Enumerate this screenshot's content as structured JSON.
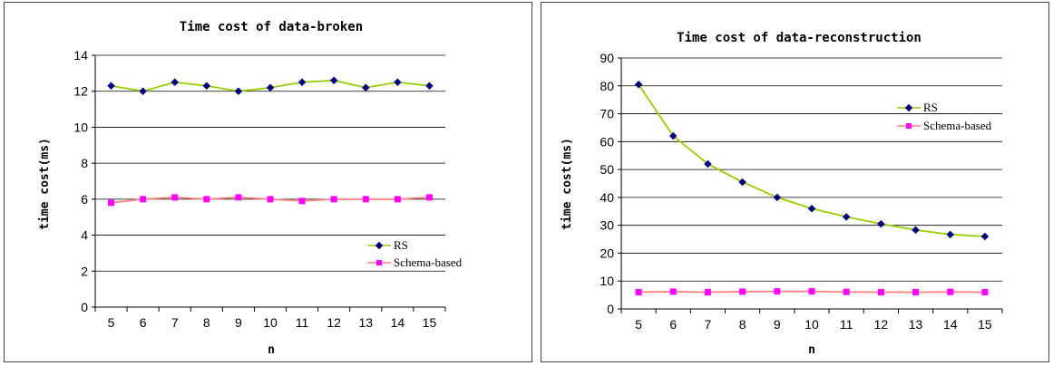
{
  "chart_data": [
    {
      "type": "line",
      "title": "Time cost of data-broken",
      "xlabel": "n",
      "ylabel": "time cost(ms)",
      "x": [
        5,
        6,
        7,
        8,
        9,
        10,
        11,
        12,
        13,
        14,
        15
      ],
      "ylim": [
        0,
        14
      ],
      "yticks": [
        0,
        2,
        4,
        6,
        8,
        10,
        12,
        14
      ],
      "grid": true,
      "legend_position": "right",
      "series": [
        {
          "name": "RS",
          "color": "#99cc00",
          "marker_color": "#000080",
          "marker": "diamond",
          "values": [
            12.3,
            12.0,
            12.5,
            12.3,
            12.0,
            12.2,
            12.5,
            12.6,
            12.2,
            12.5,
            12.3
          ]
        },
        {
          "name": "Schema-based",
          "color": "#ff8080",
          "marker_color": "#ff00ff",
          "marker": "square",
          "values": [
            5.8,
            6.0,
            6.1,
            6.0,
            6.1,
            6.0,
            5.9,
            6.0,
            6.0,
            6.0,
            6.1
          ]
        }
      ]
    },
    {
      "type": "line",
      "title": "Time cost of data-reconstruction",
      "xlabel": "n",
      "ylabel": "time cost(ms)",
      "x": [
        5,
        6,
        7,
        8,
        9,
        10,
        11,
        12,
        13,
        14,
        15
      ],
      "ylim": [
        0,
        90
      ],
      "yticks": [
        0,
        10,
        20,
        30,
        40,
        50,
        60,
        70,
        80,
        90
      ],
      "grid": true,
      "legend_position": "top-right",
      "series": [
        {
          "name": "RS",
          "color": "#99cc00",
          "marker_color": "#000080",
          "marker": "diamond",
          "values": [
            80.5,
            62,
            52,
            45.5,
            40,
            36,
            33,
            30.5,
            28.3,
            26.7,
            26
          ]
        },
        {
          "name": "Schema-based",
          "color": "#ff8080",
          "marker_color": "#ff00ff",
          "marker": "square",
          "values": [
            6,
            6.2,
            6,
            6.2,
            6.3,
            6.3,
            6.1,
            6,
            6,
            6.1,
            6
          ]
        }
      ]
    }
  ]
}
